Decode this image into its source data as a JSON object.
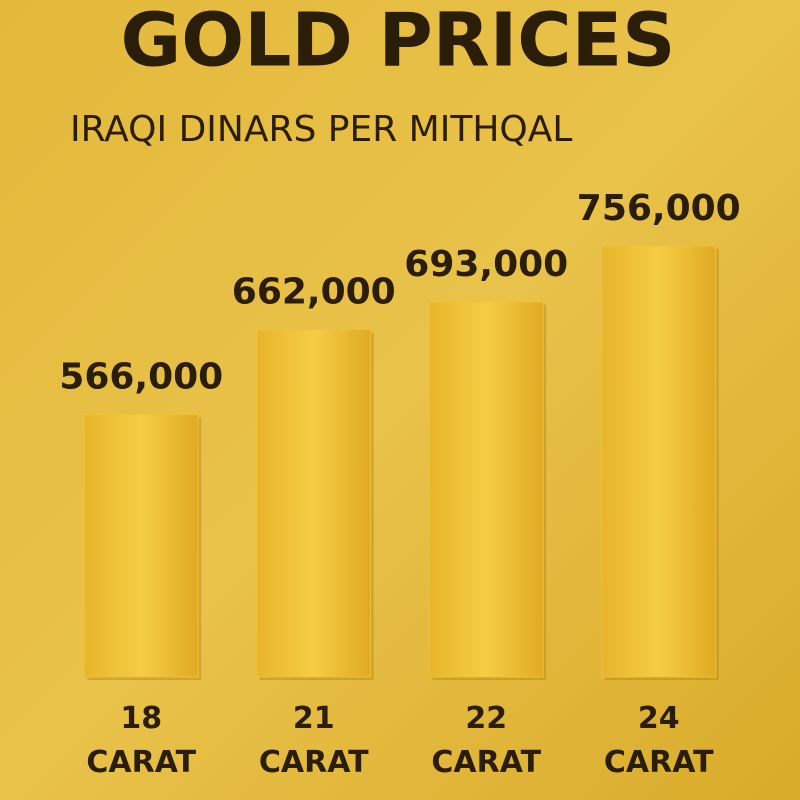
{
  "chart_data": {
    "type": "bar",
    "title": "GOLD PRICES",
    "subtitle": "IRAQI DINARS PER MITHQAL",
    "categories": [
      "18 CARAT",
      "21 CARAT",
      "22 CARAT",
      "24 CARAT"
    ],
    "values": [
      566000,
      662000,
      693000,
      756000
    ],
    "value_labels": [
      "566,000",
      "662,000",
      "693,000",
      "756,000"
    ],
    "color": "#f0c235",
    "ylim": [
      270000,
      756000
    ]
  }
}
